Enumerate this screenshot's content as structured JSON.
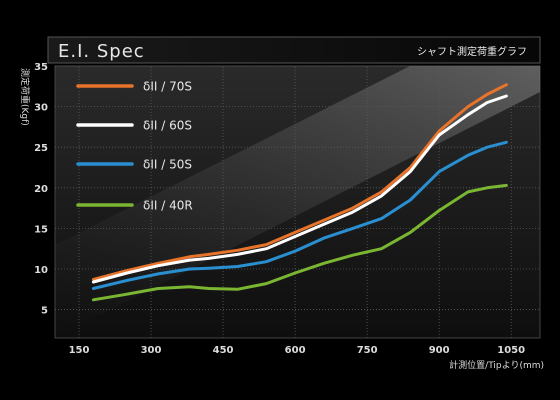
{
  "chart_data": {
    "type": "line",
    "title": "E.I. Spec",
    "subtitle": "シャフト測定荷重グラフ",
    "xlabel": "計測位置/Tipより(mm)",
    "ylabel": "測定荷重(Kgf)",
    "xlim": [
      100,
      1110
    ],
    "ylim": [
      1.5,
      35
    ],
    "xticks": [
      "150",
      "300",
      "450",
      "600",
      "750",
      "900",
      "1050"
    ],
    "yticks": [
      "5",
      "10",
      "15",
      "20",
      "25",
      "30",
      "35"
    ],
    "grid": true,
    "legend_position": "top-left",
    "x": [
      180,
      250,
      315,
      380,
      420,
      480,
      540,
      600,
      660,
      720,
      780,
      840,
      900,
      960,
      1000,
      1040
    ],
    "series": [
      {
        "name": "δII / 70S",
        "color": "#e8732a",
        "values": [
          8.7,
          9.8,
          10.7,
          11.5,
          11.8,
          12.3,
          13.0,
          14.5,
          16.0,
          17.5,
          19.5,
          22.5,
          27.0,
          30.0,
          31.5,
          32.7
        ]
      },
      {
        "name": "δII / 60S",
        "color": "#ffffff",
        "values": [
          8.4,
          9.5,
          10.4,
          11.1,
          11.3,
          11.8,
          12.5,
          14.0,
          15.5,
          17.0,
          19.0,
          22.0,
          26.5,
          29.0,
          30.5,
          31.3
        ]
      },
      {
        "name": "δII / 50S",
        "color": "#2a8fd0",
        "values": [
          7.6,
          8.6,
          9.4,
          10.0,
          10.1,
          10.3,
          10.9,
          12.2,
          13.8,
          15.0,
          16.2,
          18.5,
          22.0,
          24.0,
          25.0,
          25.6
        ]
      },
      {
        "name": "δII / 40R",
        "color": "#7ab632",
        "values": [
          6.2,
          6.9,
          7.6,
          7.8,
          7.6,
          7.5,
          8.2,
          9.5,
          10.7,
          11.7,
          12.5,
          14.5,
          17.2,
          19.5,
          20.0,
          20.3
        ]
      }
    ]
  }
}
